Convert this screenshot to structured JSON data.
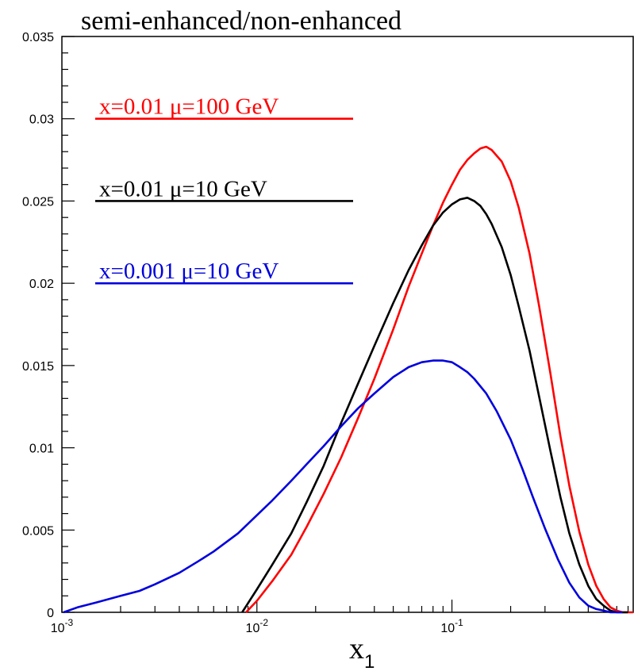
{
  "chart_data": {
    "type": "line",
    "title": "semi-enhanced/non-enhanced",
    "xlabel": "x",
    "xlabel_subscript": "1",
    "ylabel": "",
    "x_scale": "log",
    "xlim": [
      0.001,
      0.85
    ],
    "ylim": [
      0,
      0.035
    ],
    "grid": false,
    "x_ticks": [
      {
        "value": 0.001,
        "base": "10",
        "exp": "-3"
      },
      {
        "value": 0.01,
        "base": "10",
        "exp": "-2"
      },
      {
        "value": 0.1,
        "base": "10",
        "exp": "-1"
      }
    ],
    "y_ticks": [
      {
        "value": 0,
        "label": "0"
      },
      {
        "value": 0.005,
        "label": "0.005"
      },
      {
        "value": 0.01,
        "label": "0.01"
      },
      {
        "value": 0.015,
        "label": "0.015"
      },
      {
        "value": 0.02,
        "label": "0.02"
      },
      {
        "value": 0.025,
        "label": "0.025"
      },
      {
        "value": 0.03,
        "label": "0.03"
      },
      {
        "value": 0.035,
        "label": "0.035"
      }
    ],
    "legend_placement": "top-left",
    "series": [
      {
        "name": "x=0.01 μ=100 GeV",
        "color": "#ff0000",
        "legend_y": 0.03,
        "x": [
          0.0088,
          0.01,
          0.012,
          0.015,
          0.018,
          0.022,
          0.027,
          0.033,
          0.04,
          0.05,
          0.06,
          0.07,
          0.08,
          0.09,
          0.1,
          0.11,
          0.12,
          0.13,
          0.14,
          0.15,
          0.16,
          0.18,
          0.2,
          0.22,
          0.25,
          0.28,
          0.32,
          0.36,
          0.4,
          0.45,
          0.5,
          0.55,
          0.6,
          0.65,
          0.7,
          0.75,
          0.8,
          0.85
        ],
        "y": [
          0.0,
          0.0007,
          0.0019,
          0.0035,
          0.0052,
          0.0072,
          0.0094,
          0.0118,
          0.0142,
          0.0172,
          0.0198,
          0.0218,
          0.0235,
          0.0249,
          0.026,
          0.0269,
          0.0275,
          0.0279,
          0.0282,
          0.0283,
          0.0281,
          0.0274,
          0.0262,
          0.0246,
          0.0218,
          0.0186,
          0.0145,
          0.0107,
          0.0077,
          0.0049,
          0.0029,
          0.0016,
          0.0008,
          0.0003,
          0.0001,
          0.0,
          0.0,
          0.0
        ]
      },
      {
        "name": "x=0.01 μ=10 GeV",
        "color": "#000000",
        "legend_y": 0.025,
        "x": [
          0.0084,
          0.01,
          0.012,
          0.015,
          0.018,
          0.022,
          0.027,
          0.033,
          0.04,
          0.05,
          0.06,
          0.07,
          0.08,
          0.09,
          0.1,
          0.11,
          0.12,
          0.13,
          0.14,
          0.15,
          0.16,
          0.18,
          0.2,
          0.22,
          0.25,
          0.28,
          0.32,
          0.36,
          0.4,
          0.45,
          0.5,
          0.55,
          0.6,
          0.65,
          0.7,
          0.75,
          0.8
        ],
        "y": [
          0.0,
          0.0014,
          0.0029,
          0.0048,
          0.0067,
          0.0089,
          0.0115,
          0.0139,
          0.0162,
          0.0188,
          0.0208,
          0.0223,
          0.0235,
          0.0243,
          0.0248,
          0.0251,
          0.0252,
          0.025,
          0.0247,
          0.0242,
          0.0236,
          0.0222,
          0.0205,
          0.0186,
          0.0159,
          0.0131,
          0.0098,
          0.007,
          0.0048,
          0.0029,
          0.0016,
          0.0008,
          0.0004,
          0.0001,
          0.0,
          0.0,
          0.0
        ]
      },
      {
        "name": "x=0.001 μ=10 GeV",
        "color": "#0000dd",
        "legend_y": 0.02,
        "x": [
          0.00102,
          0.0012,
          0.0015,
          0.002,
          0.0025,
          0.003,
          0.004,
          0.005,
          0.006,
          0.008,
          0.01,
          0.012,
          0.015,
          0.018,
          0.022,
          0.027,
          0.033,
          0.04,
          0.05,
          0.06,
          0.07,
          0.08,
          0.09,
          0.1,
          0.11,
          0.12,
          0.13,
          0.15,
          0.17,
          0.2,
          0.23,
          0.26,
          0.3,
          0.35,
          0.4,
          0.45,
          0.5,
          0.55,
          0.6,
          0.65,
          0.7,
          0.75
        ],
        "y": [
          0.0,
          0.0003,
          0.0006,
          0.001,
          0.0013,
          0.0017,
          0.0024,
          0.0031,
          0.0037,
          0.0048,
          0.0059,
          0.0068,
          0.008,
          0.009,
          0.0101,
          0.0113,
          0.0124,
          0.0133,
          0.0143,
          0.0149,
          0.0152,
          0.0153,
          0.0153,
          0.0152,
          0.0149,
          0.0146,
          0.0142,
          0.0133,
          0.0122,
          0.0105,
          0.0087,
          0.007,
          0.0051,
          0.0032,
          0.0018,
          0.0009,
          0.0004,
          0.0002,
          0.0001,
          0.0,
          0.0,
          0.0
        ]
      }
    ]
  }
}
